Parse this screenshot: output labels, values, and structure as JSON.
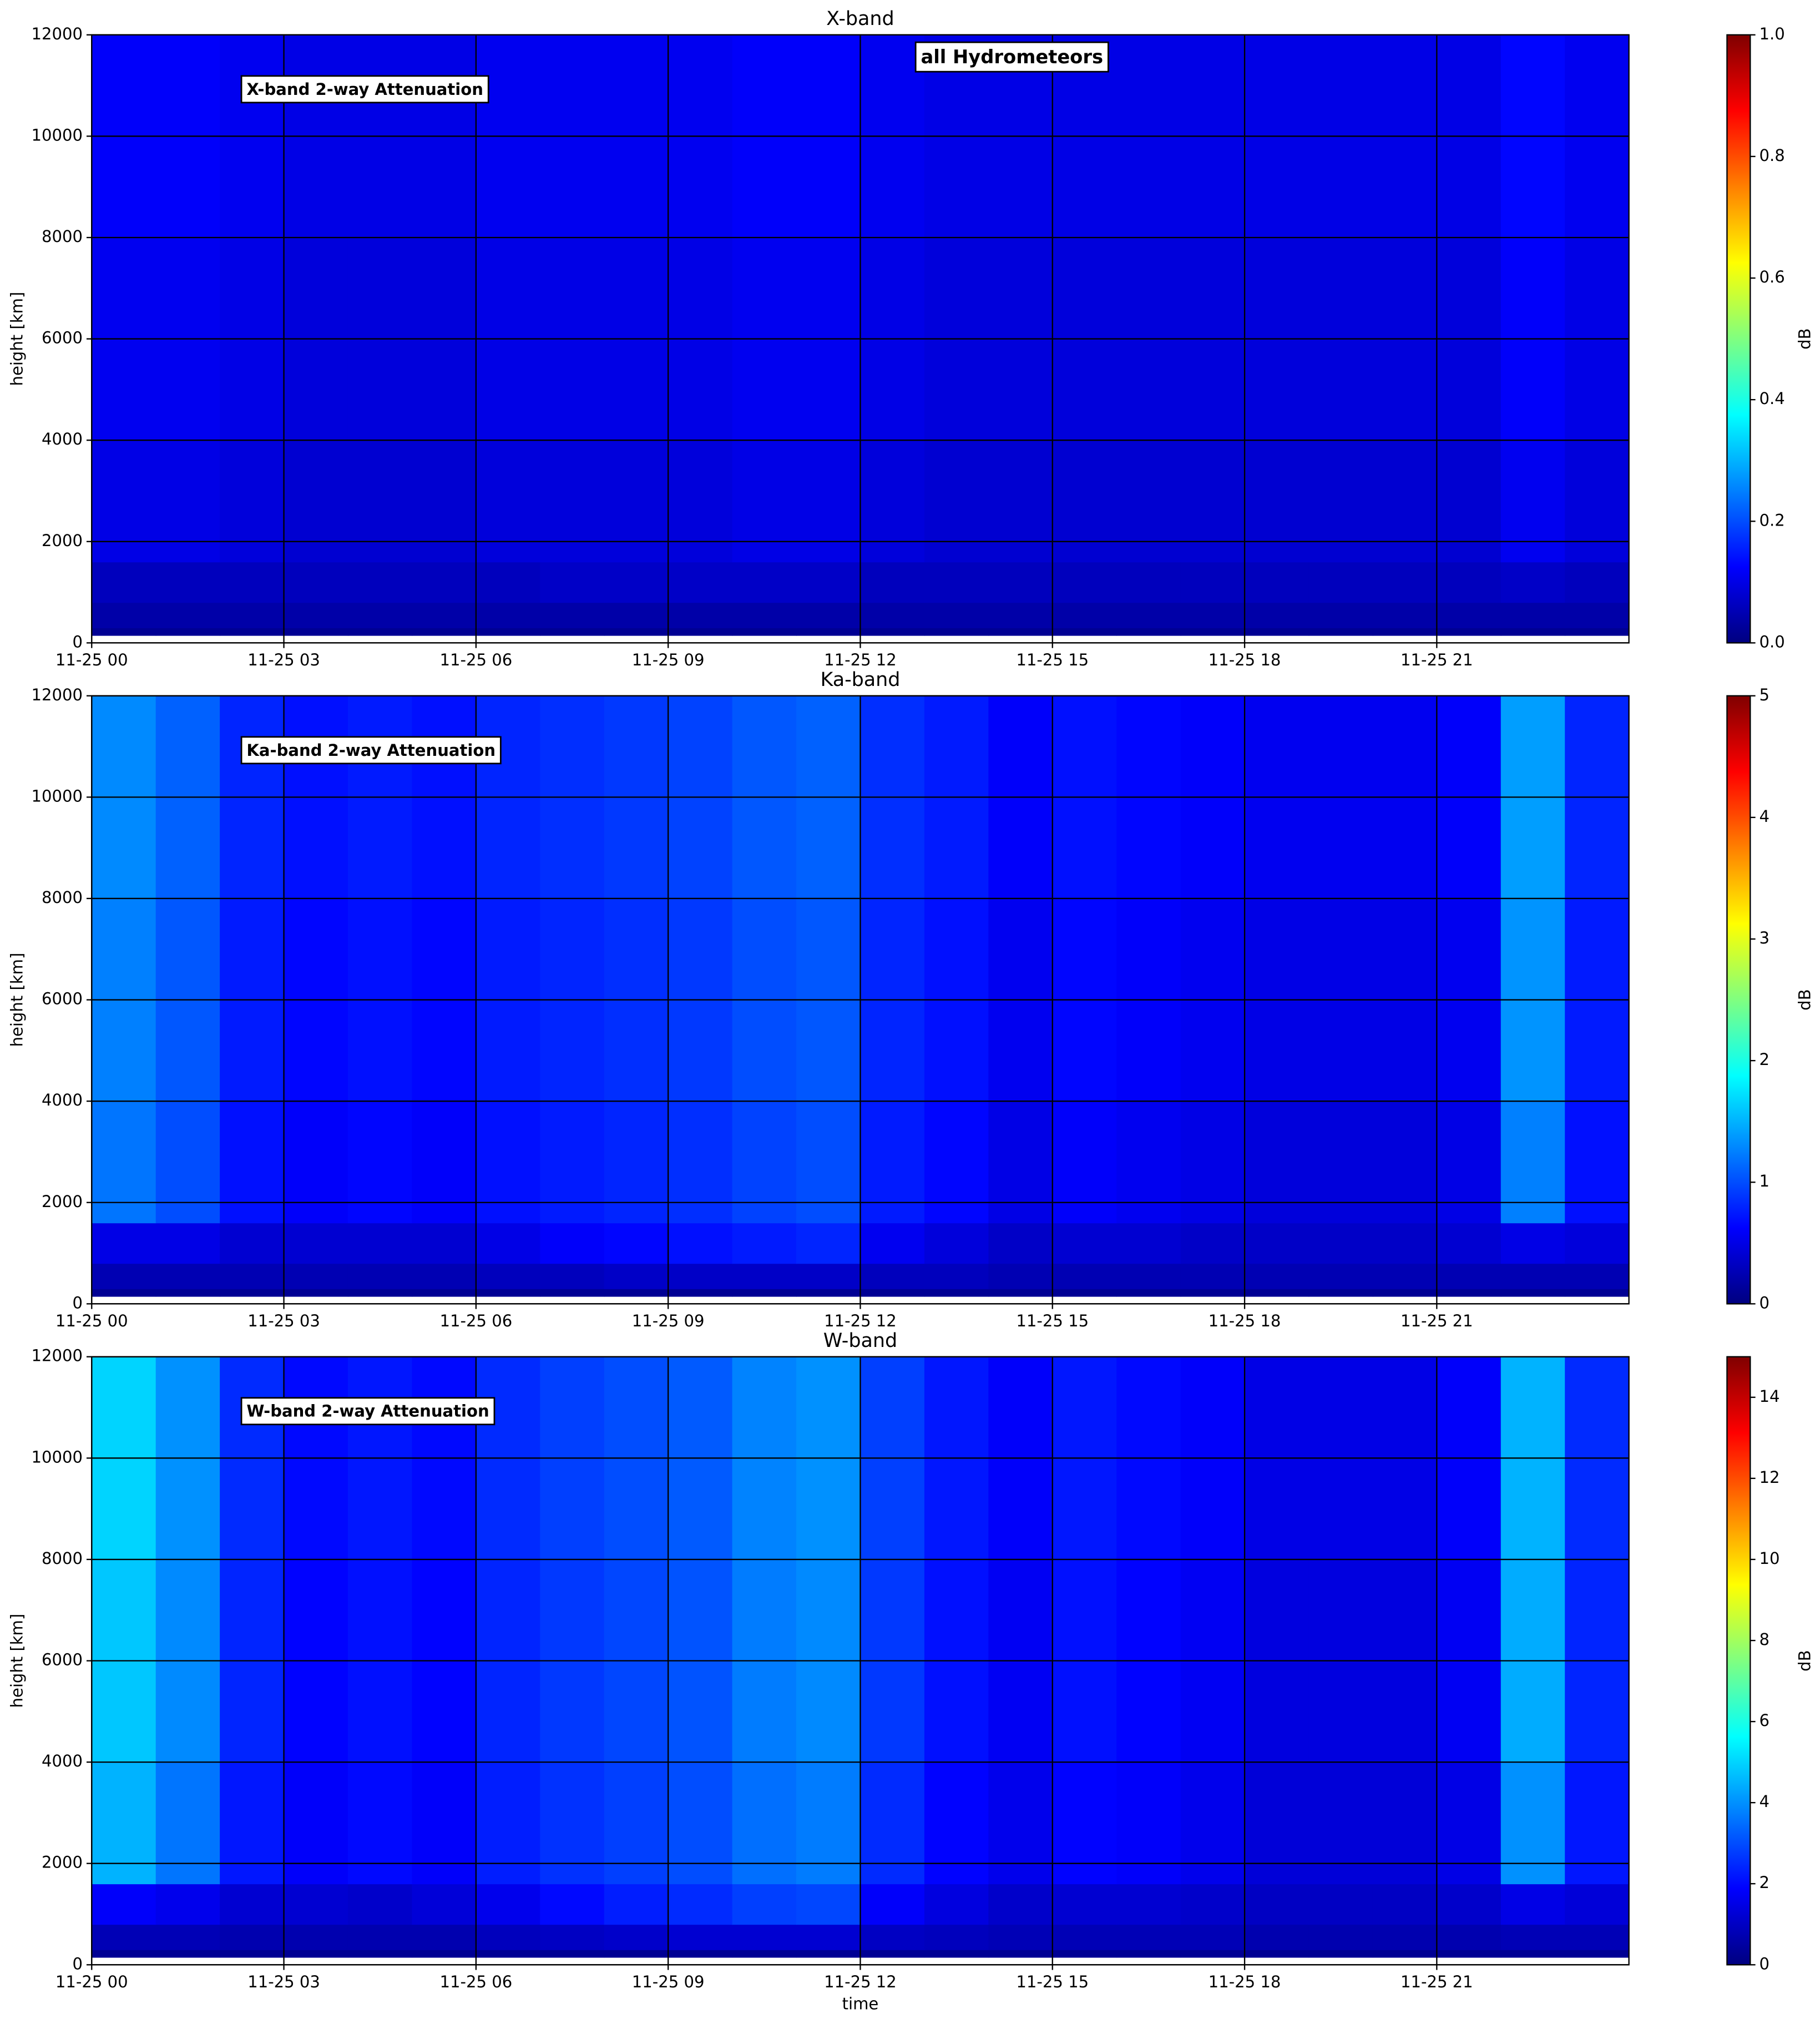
{
  "chart_data": [
    {
      "type": "heatmap",
      "title": "X-band",
      "annotations": [
        "X-band 2-way Attenuation",
        "all Hydrometeors"
      ],
      "ylabel": "height [km]",
      "colorbar_label": "dB",
      "colormap": "jet",
      "grid": true,
      "clim": [
        0,
        1
      ],
      "cticks": [
        {
          "value": 0,
          "label": "0.0"
        },
        0.2,
        0.4,
        0.6,
        0.8,
        {
          "value": 1,
          "label": "1.0"
        }
      ],
      "xlim": [
        0,
        24
      ],
      "xticks": [
        {
          "value": 0,
          "label": "11-25 00"
        },
        {
          "value": 3,
          "label": "11-25 03"
        },
        {
          "value": 6,
          "label": "11-25 06"
        },
        {
          "value": 9,
          "label": "11-25 09"
        },
        {
          "value": 12,
          "label": "11-25 12"
        },
        {
          "value": 15,
          "label": "11-25 15"
        },
        {
          "value": 18,
          "label": "11-25 18"
        },
        {
          "value": 21,
          "label": "11-25 21"
        }
      ],
      "ylim": [
        0,
        12000
      ],
      "yticks": [
        0,
        2000,
        4000,
        6000,
        8000,
        10000,
        12000
      ],
      "x_edges": [
        0,
        1,
        2,
        3,
        4,
        5,
        6,
        7,
        8,
        9,
        10,
        11,
        12,
        13,
        14,
        15,
        16,
        17,
        18,
        19,
        20,
        21,
        22,
        23,
        24
      ],
      "y_edges": [
        150,
        300,
        800,
        1600,
        4000,
        8000,
        12000
      ],
      "z": [
        [
          0.02,
          0.02,
          0.02,
          0.02,
          0.02,
          0.02,
          0.02,
          0.02,
          0.02,
          0.02,
          0.02,
          0.02,
          0.02,
          0.02,
          0.02,
          0.02,
          0.02,
          0.02,
          0.02,
          0.02,
          0.02,
          0.02,
          0.02,
          0.02
        ],
        [
          0.04,
          0.04,
          0.04,
          0.04,
          0.04,
          0.04,
          0.04,
          0.04,
          0.04,
          0.04,
          0.04,
          0.04,
          0.04,
          0.04,
          0.04,
          0.04,
          0.04,
          0.04,
          0.04,
          0.04,
          0.04,
          0.04,
          0.04,
          0.04
        ],
        [
          0.06,
          0.06,
          0.06,
          0.06,
          0.06,
          0.06,
          0.06,
          0.07,
          0.07,
          0.07,
          0.07,
          0.07,
          0.06,
          0.06,
          0.06,
          0.06,
          0.06,
          0.06,
          0.06,
          0.06,
          0.06,
          0.06,
          0.07,
          0.06
        ],
        [
          0.1,
          0.1,
          0.09,
          0.08,
          0.08,
          0.08,
          0.09,
          0.09,
          0.09,
          0.09,
          0.1,
          0.1,
          0.09,
          0.08,
          0.08,
          0.08,
          0.08,
          0.08,
          0.08,
          0.08,
          0.08,
          0.08,
          0.11,
          0.09
        ],
        [
          0.11,
          0.11,
          0.1,
          0.09,
          0.09,
          0.09,
          0.1,
          0.1,
          0.1,
          0.1,
          0.11,
          0.11,
          0.1,
          0.09,
          0.09,
          0.09,
          0.09,
          0.09,
          0.09,
          0.09,
          0.09,
          0.09,
          0.12,
          0.1
        ],
        [
          0.12,
          0.12,
          0.11,
          0.1,
          0.1,
          0.1,
          0.11,
          0.11,
          0.11,
          0.11,
          0.12,
          0.12,
          0.11,
          0.1,
          0.1,
          0.1,
          0.1,
          0.1,
          0.1,
          0.1,
          0.1,
          0.1,
          0.13,
          0.11
        ]
      ]
    },
    {
      "type": "heatmap",
      "title": "Ka-band",
      "annotations": [
        "Ka-band 2-way Attenuation"
      ],
      "ylabel": "height [km]",
      "colorbar_label": "dB",
      "colormap": "jet",
      "grid": true,
      "clim": [
        0,
        5
      ],
      "cticks": [
        0,
        1,
        2,
        3,
        4,
        5
      ],
      "xlim": [
        0,
        24
      ],
      "xticks": [
        {
          "value": 0,
          "label": "11-25 00"
        },
        {
          "value": 3,
          "label": "11-25 03"
        },
        {
          "value": 6,
          "label": "11-25 06"
        },
        {
          "value": 9,
          "label": "11-25 09"
        },
        {
          "value": 12,
          "label": "11-25 12"
        },
        {
          "value": 15,
          "label": "11-25 15"
        },
        {
          "value": 18,
          "label": "11-25 18"
        },
        {
          "value": 21,
          "label": "11-25 21"
        }
      ],
      "ylim": [
        0,
        12000
      ],
      "yticks": [
        0,
        2000,
        4000,
        6000,
        8000,
        10000,
        12000
      ],
      "x_edges": [
        0,
        1,
        2,
        3,
        4,
        5,
        6,
        7,
        8,
        9,
        10,
        11,
        12,
        13,
        14,
        15,
        16,
        17,
        18,
        19,
        20,
        21,
        22,
        23,
        24
      ],
      "y_edges": [
        150,
        300,
        800,
        1600,
        4000,
        8000,
        12000
      ],
      "z": [
        [
          0.1,
          0.1,
          0.1,
          0.1,
          0.1,
          0.1,
          0.1,
          0.1,
          0.1,
          0.1,
          0.1,
          0.1,
          0.1,
          0.1,
          0.1,
          0.1,
          0.1,
          0.1,
          0.1,
          0.1,
          0.1,
          0.1,
          0.1,
          0.1
        ],
        [
          0.25,
          0.25,
          0.25,
          0.25,
          0.25,
          0.25,
          0.3,
          0.3,
          0.35,
          0.35,
          0.35,
          0.35,
          0.3,
          0.3,
          0.25,
          0.25,
          0.25,
          0.25,
          0.25,
          0.25,
          0.25,
          0.25,
          0.25,
          0.25
        ],
        [
          0.5,
          0.5,
          0.4,
          0.4,
          0.4,
          0.4,
          0.5,
          0.6,
          0.65,
          0.7,
          0.75,
          0.8,
          0.55,
          0.45,
          0.35,
          0.4,
          0.4,
          0.35,
          0.35,
          0.35,
          0.35,
          0.4,
          0.5,
          0.45
        ],
        [
          1.2,
          1.0,
          0.7,
          0.6,
          0.65,
          0.6,
          0.7,
          0.75,
          0.8,
          0.85,
          0.95,
          1.0,
          0.75,
          0.65,
          0.5,
          0.6,
          0.55,
          0.5,
          0.45,
          0.45,
          0.45,
          0.5,
          1.25,
          0.7
        ],
        [
          1.25,
          1.05,
          0.75,
          0.65,
          0.7,
          0.65,
          0.75,
          0.8,
          0.85,
          0.9,
          1.0,
          1.05,
          0.8,
          0.7,
          0.55,
          0.65,
          0.6,
          0.55,
          0.5,
          0.5,
          0.5,
          0.55,
          1.35,
          0.75
        ],
        [
          1.3,
          1.1,
          0.8,
          0.7,
          0.75,
          0.7,
          0.8,
          0.85,
          0.9,
          0.95,
          1.05,
          1.1,
          0.85,
          0.75,
          0.6,
          0.7,
          0.65,
          0.6,
          0.55,
          0.55,
          0.55,
          0.6,
          1.4,
          0.8
        ]
      ]
    },
    {
      "type": "heatmap",
      "title": "W-band",
      "annotations": [
        "W-band 2-way Attenuation"
      ],
      "ylabel": "height [km]",
      "xlabel": "time",
      "colorbar_label": "dB",
      "colormap": "jet",
      "grid": true,
      "clim": [
        0,
        15
      ],
      "cticks": [
        0,
        2,
        4,
        6,
        8,
        10,
        12,
        14
      ],
      "xlim": [
        0,
        24
      ],
      "xticks": [
        {
          "value": 0,
          "label": "11-25 00"
        },
        {
          "value": 3,
          "label": "11-25 03"
        },
        {
          "value": 6,
          "label": "11-25 06"
        },
        {
          "value": 9,
          "label": "11-25 09"
        },
        {
          "value": 12,
          "label": "11-25 12"
        },
        {
          "value": 15,
          "label": "11-25 15"
        },
        {
          "value": 18,
          "label": "11-25 18"
        },
        {
          "value": 21,
          "label": "11-25 21"
        }
      ],
      "ylim": [
        0,
        12000
      ],
      "yticks": [
        0,
        2000,
        4000,
        6000,
        8000,
        10000,
        12000
      ],
      "x_edges": [
        0,
        1,
        2,
        3,
        4,
        5,
        6,
        7,
        8,
        9,
        10,
        11,
        12,
        13,
        14,
        15,
        16,
        17,
        18,
        19,
        20,
        21,
        22,
        23,
        24
      ],
      "y_edges": [
        150,
        300,
        800,
        1600,
        4000,
        8000,
        12000
      ],
      "z": [
        [
          0.3,
          0.3,
          0.3,
          0.3,
          0.3,
          0.3,
          0.3,
          0.3,
          0.3,
          0.3,
          0.3,
          0.3,
          0.3,
          0.3,
          0.3,
          0.3,
          0.3,
          0.3,
          0.3,
          0.3,
          0.3,
          0.3,
          0.3,
          0.3
        ],
        [
          0.8,
          0.8,
          0.7,
          0.7,
          0.7,
          0.7,
          0.9,
          1.0,
          1.1,
          1.2,
          1.2,
          1.2,
          1.0,
          0.9,
          0.8,
          0.8,
          0.8,
          0.8,
          0.7,
          0.7,
          0.7,
          0.7,
          0.8,
          0.8
        ],
        [
          1.8,
          1.6,
          1.2,
          1.2,
          1.1,
          1.3,
          1.6,
          2.0,
          2.3,
          2.5,
          2.8,
          2.9,
          1.8,
          1.4,
          1.1,
          1.2,
          1.2,
          1.1,
          1.0,
          1.0,
          1.0,
          1.1,
          1.5,
          1.3
        ],
        [
          4.5,
          3.6,
          2.2,
          1.8,
          2.0,
          1.8,
          2.3,
          2.6,
          2.8,
          3.0,
          3.5,
          3.7,
          2.5,
          1.9,
          1.6,
          1.9,
          1.8,
          1.6,
          1.3,
          1.3,
          1.3,
          1.5,
          4.0,
          2.2
        ],
        [
          4.8,
          3.9,
          2.4,
          1.9,
          2.1,
          1.9,
          2.4,
          2.7,
          2.9,
          3.1,
          3.7,
          3.9,
          2.7,
          2.1,
          1.7,
          2.1,
          1.9,
          1.7,
          1.4,
          1.4,
          1.4,
          1.7,
          4.4,
          2.4
        ],
        [
          5.0,
          4.0,
          2.5,
          2.0,
          2.2,
          2.0,
          2.5,
          2.8,
          3.0,
          3.2,
          3.8,
          4.0,
          2.8,
          2.2,
          1.8,
          2.2,
          2.0,
          1.8,
          1.5,
          1.5,
          1.5,
          1.8,
          4.5,
          2.5
        ]
      ]
    }
  ]
}
